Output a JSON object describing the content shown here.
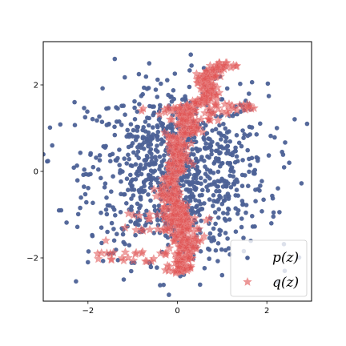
{
  "chart_data": {
    "type": "scatter",
    "title": "",
    "xlabel": "",
    "ylabel": "",
    "xlim": [
      -3,
      3
    ],
    "ylim": [
      -3,
      3
    ],
    "xticks": [
      -2,
      0,
      2
    ],
    "yticks": [
      -2,
      0,
      2
    ],
    "xtick_labels": [
      "−2",
      "0",
      "2"
    ],
    "ytick_labels": [
      "−2",
      "0",
      "2"
    ],
    "grid": false,
    "legend_position": "lower-right",
    "series": [
      {
        "name": "p(z)",
        "marker": "circle",
        "color": "#4c6196",
        "values_description": "approximately standard 2D Gaussian samples, ~1000 points",
        "points_sample": [
          [
            -2.3,
            1.6
          ],
          [
            -1.4,
            2.6
          ],
          [
            0.3,
            2.7
          ],
          [
            1.3,
            1.5
          ],
          [
            2.9,
            1.1
          ],
          [
            -2.8,
            0.6
          ],
          [
            -1.3,
            0.5
          ],
          [
            0.5,
            0.5
          ],
          [
            1.8,
            0.3
          ],
          [
            2.5,
            0.2
          ],
          [
            -2.6,
            -0.9
          ],
          [
            -1.7,
            -1.3
          ],
          [
            -0.5,
            -0.9
          ],
          [
            0.9,
            -0.7
          ],
          [
            2.1,
            -1.2
          ],
          [
            -2.0,
            -2.1
          ],
          [
            -1.2,
            -2.5
          ],
          [
            0.3,
            -2.0
          ],
          [
            1.0,
            -2.4
          ],
          [
            2.4,
            -2.3
          ]
        ]
      },
      {
        "name": "q(z)",
        "marker": "star",
        "color": "#e05252",
        "values_description": "narrow S-shaped band from about (0, -2.3) to (1, 2.5) with horizontal streaks",
        "points_sample": [
          [
            -0.2,
            -2.3
          ],
          [
            0.0,
            -2.1
          ],
          [
            0.1,
            -1.6
          ],
          [
            0.0,
            -1.0
          ],
          [
            -0.1,
            -0.4
          ],
          [
            0.0,
            0.0
          ],
          [
            -0.1,
            0.4
          ],
          [
            -0.1,
            0.8
          ],
          [
            0.1,
            1.2
          ],
          [
            0.4,
            1.6
          ],
          [
            0.6,
            2.0
          ],
          [
            0.9,
            2.4
          ],
          [
            1.2,
            2.4
          ],
          [
            -0.8,
            1.4
          ],
          [
            1.6,
            1.5
          ],
          [
            -1.6,
            -1.6
          ],
          [
            0.6,
            -1.5
          ],
          [
            -1.5,
            -1.9
          ],
          [
            -1.1,
            -2.0
          ],
          [
            0.7,
            1.2
          ]
        ]
      }
    ],
    "legend": [
      {
        "label": "p(z)",
        "marker": "circle",
        "color": "#4c6196"
      },
      {
        "label": "q(z)",
        "marker": "star",
        "color": "#e05252"
      }
    ]
  }
}
